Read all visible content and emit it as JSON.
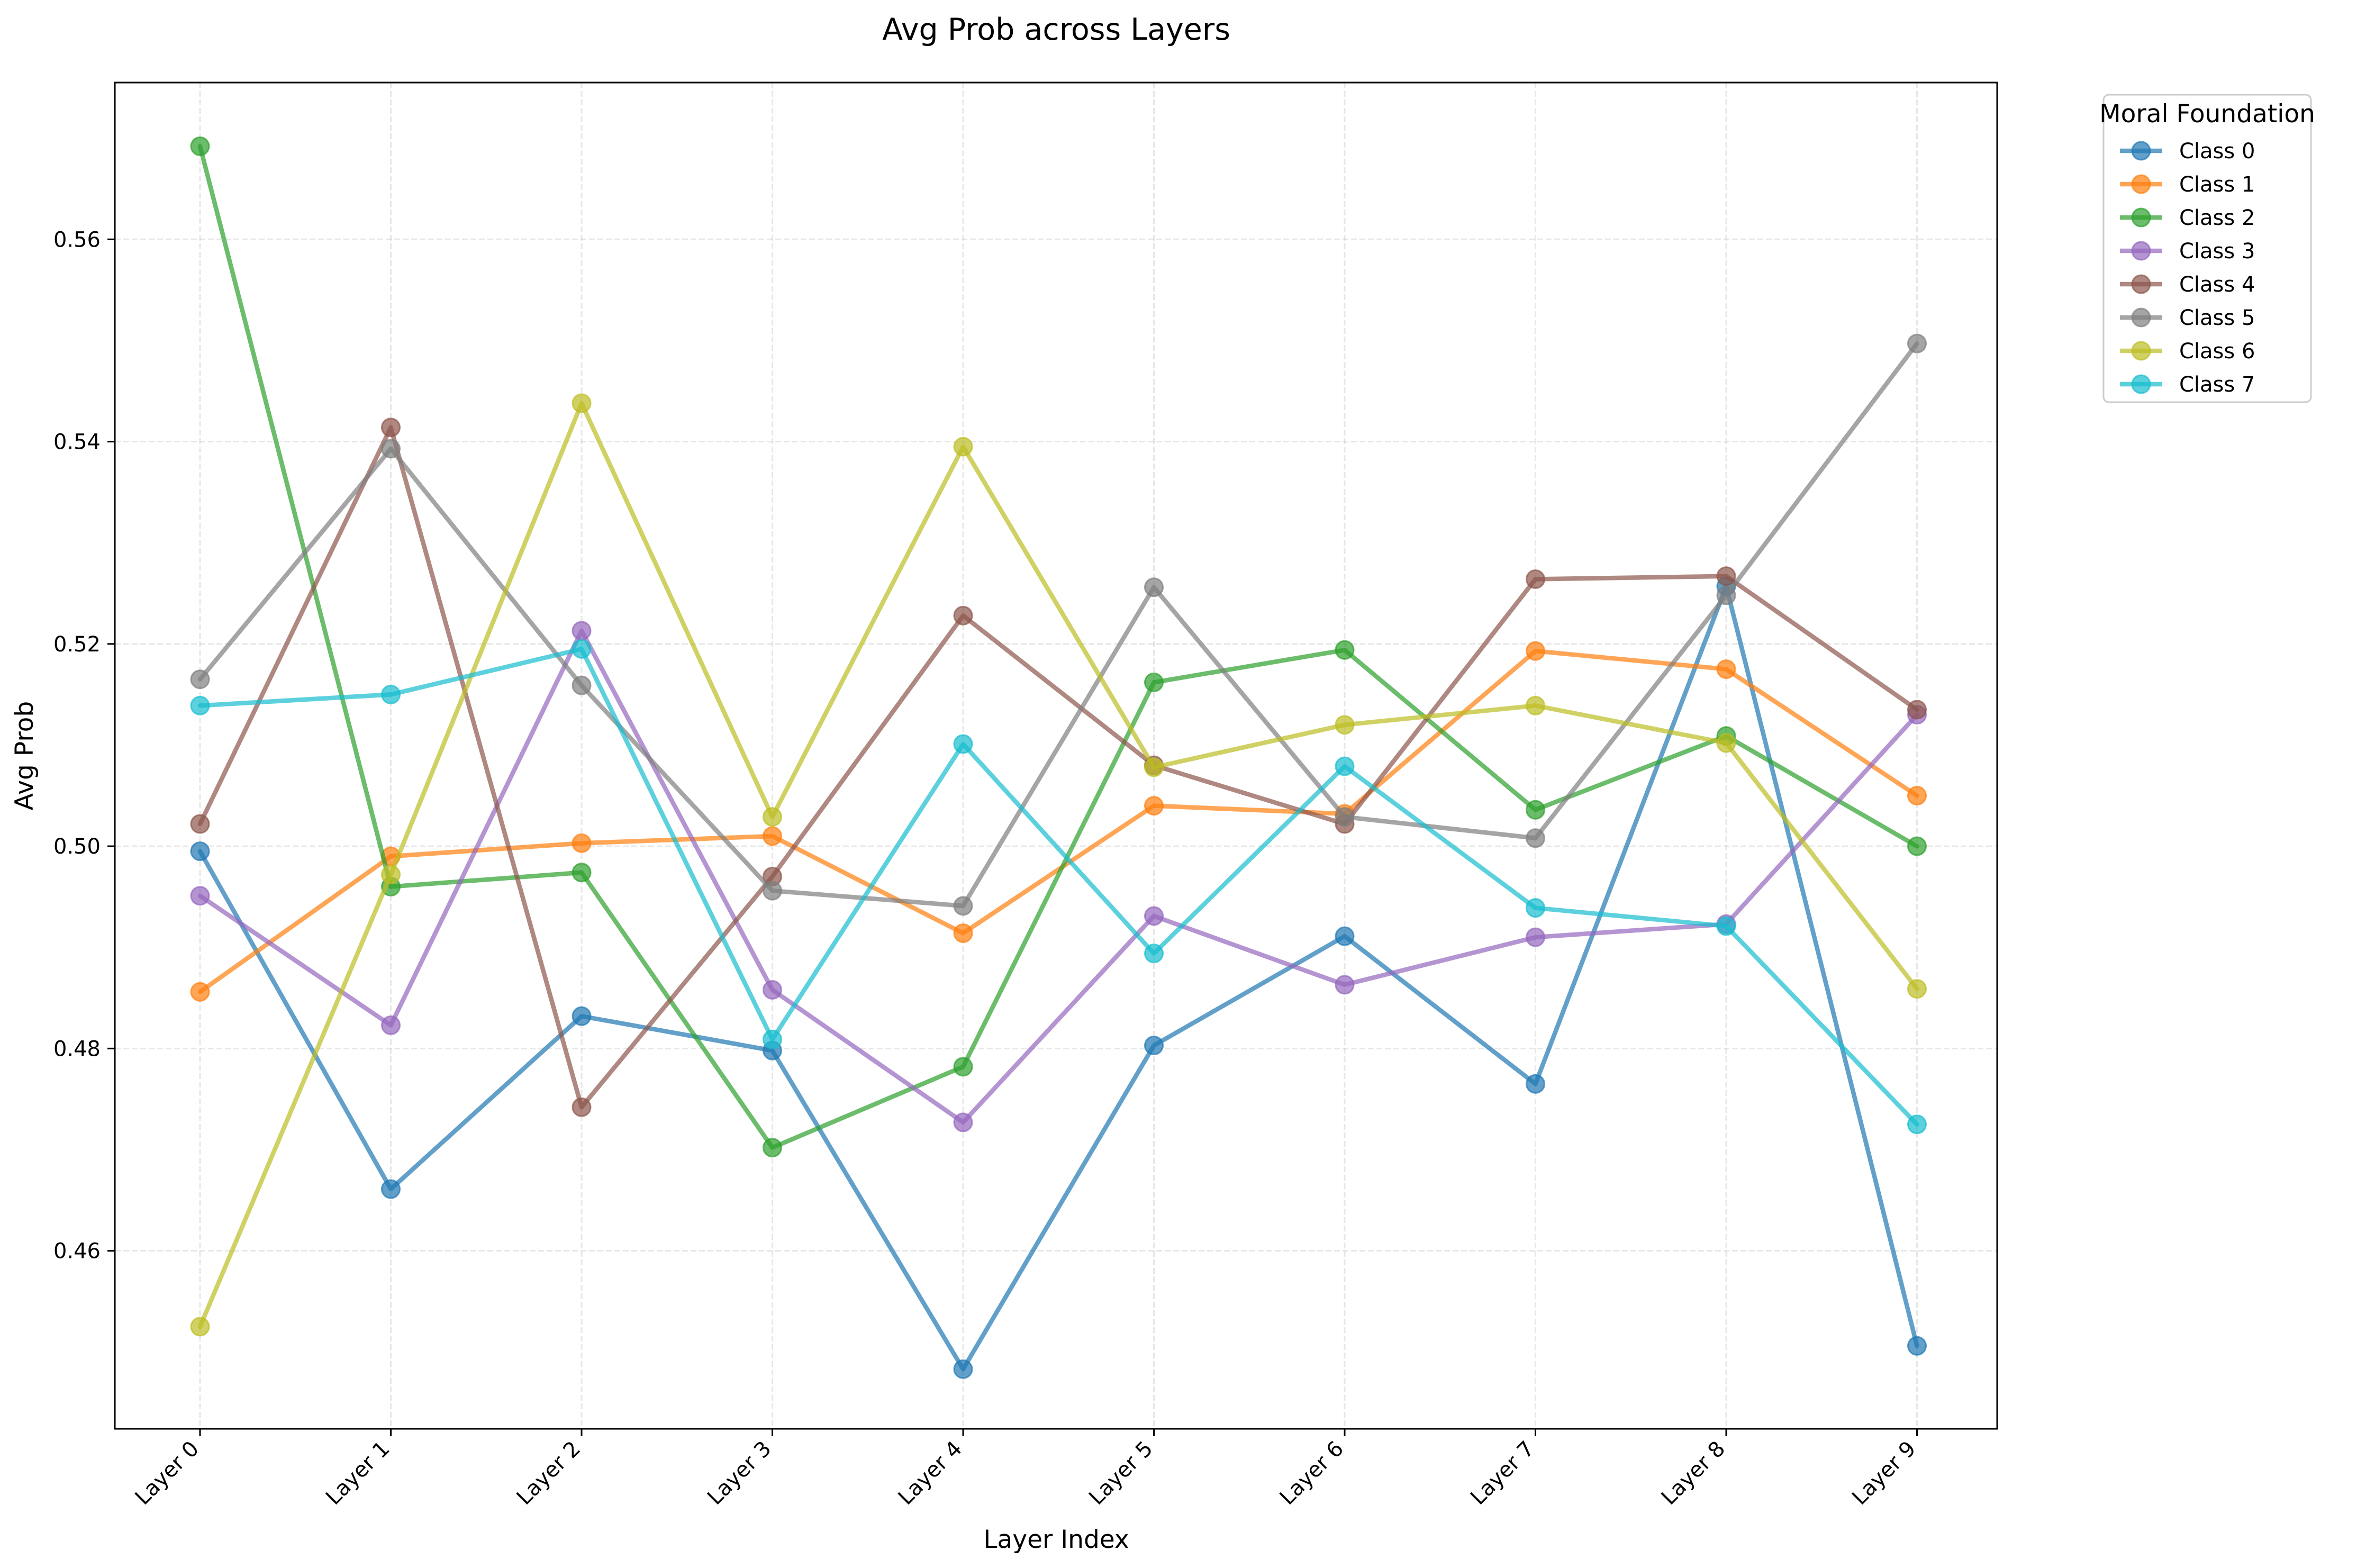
{
  "chart_data": {
    "type": "line",
    "title": "Avg Prob across Layers",
    "xlabel": "Layer Index",
    "ylabel": "Avg Prob",
    "categories": [
      "Layer 0",
      "Layer 1",
      "Layer 2",
      "Layer 3",
      "Layer 4",
      "Layer 5",
      "Layer 6",
      "Layer 7",
      "Layer 8",
      "Layer 9"
    ],
    "ylim": [
      0.4424,
      0.5755
    ],
    "yticks": [
      0.46,
      0.48,
      0.5,
      0.52,
      0.54,
      0.56
    ],
    "ytick_labels": [
      "0.46",
      "0.48",
      "0.50",
      "0.52",
      "0.54",
      "0.56"
    ],
    "grid": true,
    "legend": {
      "title": "Moral Foundation",
      "placement": "outside-top-right"
    },
    "series": [
      {
        "name": "Class 0",
        "color": "#1f77b4",
        "values": [
          0.4995,
          0.4661,
          0.4832,
          0.4798,
          0.4483,
          0.4803,
          0.4911,
          0.4765,
          0.5257,
          0.4506
        ]
      },
      {
        "name": "Class 1",
        "color": "#ff7f0e",
        "values": [
          0.4856,
          0.499,
          0.5003,
          0.501,
          0.4914,
          0.504,
          0.5032,
          0.5193,
          0.5175,
          0.505
        ]
      },
      {
        "name": "Class 2",
        "color": "#2ca02c",
        "values": [
          0.5692,
          0.496,
          0.4974,
          0.4702,
          0.4782,
          0.5162,
          0.5194,
          0.5036,
          0.5109,
          0.5
        ]
      },
      {
        "name": "Class 3",
        "color": "#9467bd",
        "values": [
          0.4951,
          0.4823,
          0.5213,
          0.4858,
          0.4727,
          0.4931,
          0.4863,
          0.491,
          0.4923,
          0.513
        ]
      },
      {
        "name": "Class 4",
        "color": "#8c564b",
        "values": [
          0.5022,
          0.5414,
          0.4742,
          0.497,
          0.5228,
          0.508,
          0.5022,
          0.5264,
          0.5267,
          0.5135
        ]
      },
      {
        "name": "Class 5",
        "color": "#7f7f7f",
        "values": [
          0.5165,
          0.5393,
          0.5159,
          0.4956,
          0.4941,
          0.5256,
          0.5029,
          0.5008,
          0.5248,
          0.5497
        ]
      },
      {
        "name": "Class 6",
        "color": "#bcbd22",
        "values": [
          0.4525,
          0.4972,
          0.5438,
          0.5029,
          0.5395,
          0.5078,
          0.512,
          0.5139,
          0.5102,
          0.4859
        ]
      },
      {
        "name": "Class 7",
        "color": "#17becf",
        "values": [
          0.5139,
          0.515,
          0.5195,
          0.4809,
          0.5101,
          0.4894,
          0.5079,
          0.4939,
          0.4921,
          0.4725
        ]
      }
    ]
  }
}
